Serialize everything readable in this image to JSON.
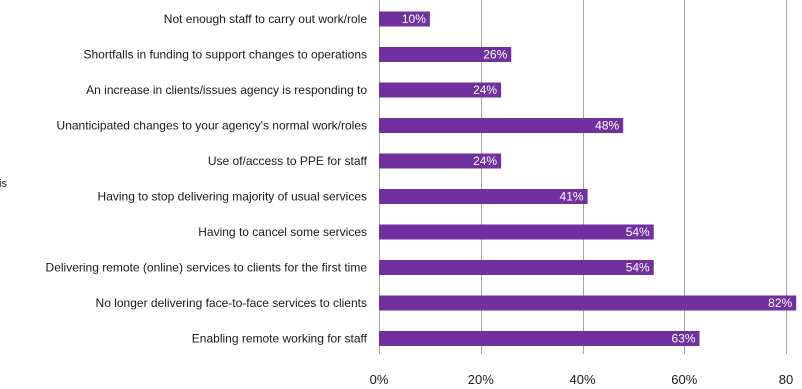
{
  "chart_data": {
    "type": "bar",
    "orientation": "horizontal",
    "categories": [
      "Not enough staff to carry out work/role",
      "Shortfalls in funding to support changes to operations",
      "An increase in clients/issues agency is responding to",
      "Unanticipated changes to your agency's normal work/roles",
      "Use of/access to PPE for staff",
      "Having to stop delivering majority of usual services",
      "Having to cancel some services",
      "Delivering remote (online) services to clients for the first time",
      "No longer delivering face-to-face services to clients",
      "Enabling remote working for staff"
    ],
    "values": [
      10,
      26,
      24,
      48,
      24,
      41,
      54,
      54,
      82,
      63
    ],
    "value_labels": [
      "10%",
      "26%",
      "24%",
      "48%",
      "24%",
      "41%",
      "54%",
      "54%",
      "82%",
      "63%"
    ],
    "x_ticks": [
      "0%",
      "20%",
      "40%",
      "60%",
      "80"
    ],
    "xlim": [
      0,
      80
    ],
    "grid": "vertical",
    "bar_color": "#7030a0",
    "gridline_color": "#a6a6a6"
  },
  "side_fragment": "is"
}
